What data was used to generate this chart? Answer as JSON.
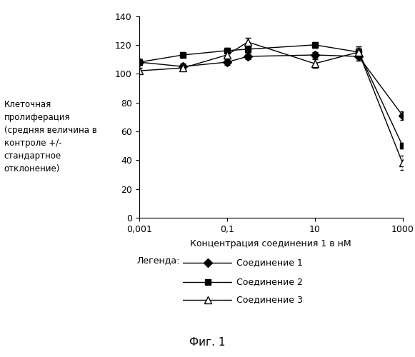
{
  "xlabel": "Концентрация соединения 1 в нМ",
  "ylabel": "Клеточная\nпролиферация\n(средняя величина в\nконтроле +/-\nстандартное\nотклонение)",
  "fig_label": "Фиг. 1",
  "legend_title": "Легенда:",
  "series": [
    {
      "name": "Соединение 1",
      "x": [
        0.001,
        0.01,
        0.1,
        0.3,
        10,
        100,
        1000
      ],
      "y": [
        108,
        105,
        108,
        112,
        113,
        112,
        71
      ],
      "yerr": [
        2,
        2,
        2,
        2,
        2,
        3,
        3
      ],
      "color": "#000000",
      "marker": "D",
      "markersize": 6,
      "markerfacecolor": "#000000",
      "linestyle": "-"
    },
    {
      "name": "Соединение 2",
      "x": [
        0.001,
        0.01,
        0.1,
        0.3,
        10,
        100,
        1000
      ],
      "y": [
        108,
        113,
        116,
        117,
        120,
        115,
        50
      ],
      "yerr": [
        2,
        2,
        2,
        2,
        2,
        4,
        2
      ],
      "color": "#000000",
      "marker": "s",
      "markersize": 6,
      "markerfacecolor": "#000000",
      "linestyle": "-"
    },
    {
      "name": "Соединение 3",
      "x": [
        0.001,
        0.01,
        0.1,
        0.3,
        10,
        100,
        1000
      ],
      "y": [
        102,
        104,
        113,
        122,
        107,
        115,
        38
      ],
      "yerr": [
        2,
        2,
        2,
        3,
        3,
        3,
        5
      ],
      "color": "#000000",
      "marker": "^",
      "markersize": 7,
      "markerfacecolor": "#ffffff",
      "linestyle": "-"
    }
  ],
  "ylim": [
    0,
    140
  ],
  "yticks": [
    0,
    20,
    40,
    60,
    80,
    100,
    120,
    140
  ],
  "xticks": [
    0.001,
    0.1,
    10,
    1000
  ],
  "xticklabels": [
    "0,001",
    "0,1",
    "10",
    "1000"
  ],
  "background_color": "#ffffff",
  "capsize": 3,
  "elinewidth": 1,
  "linewidth": 1.0
}
